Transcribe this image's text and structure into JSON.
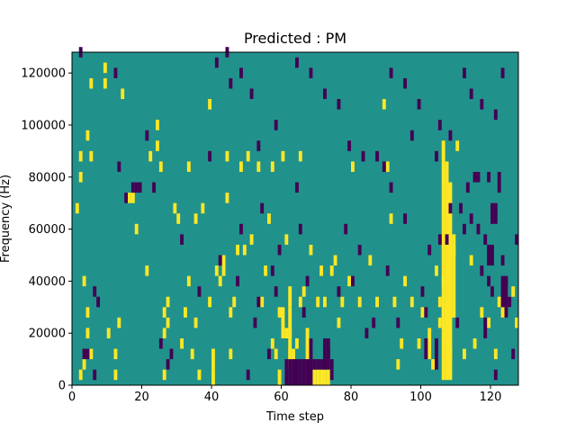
{
  "chart_data": {
    "type": "heatmap",
    "title": "Predicted : PM",
    "xlabel": "Time step",
    "ylabel": "Frequency (Hz)",
    "xlim": [
      0,
      128
    ],
    "ylim": [
      0,
      128000
    ],
    "x_ticks": [
      0,
      20,
      40,
      60,
      80,
      100,
      120
    ],
    "y_ticks": [
      0,
      20000,
      40000,
      60000,
      80000,
      100000,
      120000
    ],
    "x_tick_labels": [
      "0",
      "20",
      "40",
      "60",
      "80",
      "100",
      "120"
    ],
    "y_tick_labels": [
      "0",
      "20000",
      "40000",
      "60000",
      "80000",
      "100000",
      "120000"
    ],
    "grid": false,
    "colormap": "viridis",
    "background_value": 0,
    "colors": {
      "background": "#21918c",
      "high": "#fde725",
      "low": "#440154"
    },
    "cell_size": {
      "time_steps": 1,
      "frequency_hz": 4000
    },
    "high_cells": [
      [
        2,
        2000
      ],
      [
        3,
        6000
      ],
      [
        5,
        10000
      ],
      [
        4,
        18000
      ],
      [
        4,
        26000
      ],
      [
        3,
        38000
      ],
      [
        1,
        66000
      ],
      [
        2,
        78000
      ],
      [
        2,
        86000
      ],
      [
        5,
        86000
      ],
      [
        5,
        114000
      ],
      [
        4,
        94000
      ],
      [
        9,
        114000
      ],
      [
        9,
        120000
      ],
      [
        10,
        18000
      ],
      [
        12,
        2000
      ],
      [
        12,
        10000
      ],
      [
        13,
        22000
      ],
      [
        14,
        110000
      ],
      [
        16,
        70000
      ],
      [
        17,
        70000
      ],
      [
        18,
        58000
      ],
      [
        21,
        42000
      ],
      [
        22,
        86000
      ],
      [
        24,
        98000
      ],
      [
        26,
        2000
      ],
      [
        26,
        18000
      ],
      [
        26,
        26000
      ],
      [
        27,
        30000
      ],
      [
        27,
        22000
      ],
      [
        29,
        66000
      ],
      [
        30,
        62000
      ],
      [
        31,
        14000
      ],
      [
        32,
        26000
      ],
      [
        33,
        38000
      ],
      [
        33,
        82000
      ],
      [
        34,
        10000
      ],
      [
        35,
        62000
      ],
      [
        35,
        22000
      ],
      [
        36,
        2000
      ],
      [
        37,
        66000
      ],
      [
        39,
        30000
      ],
      [
        39,
        106000
      ],
      [
        40,
        6000
      ],
      [
        40,
        10000
      ],
      [
        41,
        42000
      ],
      [
        42,
        38000
      ],
      [
        43,
        42000
      ],
      [
        43,
        46000
      ],
      [
        44,
        70000
      ],
      [
        44,
        86000
      ],
      [
        45,
        26000
      ],
      [
        45,
        10000
      ],
      [
        46,
        30000
      ],
      [
        47,
        50000
      ],
      [
        48,
        82000
      ],
      [
        49,
        50000
      ],
      [
        50,
        86000
      ],
      [
        51,
        54000
      ],
      [
        53,
        82000
      ],
      [
        54,
        30000
      ],
      [
        55,
        42000
      ],
      [
        56,
        62000
      ],
      [
        57,
        14000
      ],
      [
        58,
        10000
      ],
      [
        59,
        26000
      ],
      [
        60,
        86000
      ],
      [
        61,
        54000
      ],
      [
        61,
        18000
      ],
      [
        62,
        18000
      ],
      [
        62,
        10000
      ],
      [
        62,
        6000
      ],
      [
        63,
        10000
      ],
      [
        64,
        14000
      ],
      [
        65,
        30000
      ],
      [
        65,
        86000
      ],
      [
        66,
        34000
      ],
      [
        68,
        50000
      ],
      [
        70,
        30000
      ],
      [
        71,
        42000
      ],
      [
        72,
        30000
      ],
      [
        74,
        42000
      ],
      [
        75,
        46000
      ],
      [
        76,
        22000
      ],
      [
        77,
        30000
      ],
      [
        79,
        38000
      ],
      [
        82,
        30000
      ],
      [
        85,
        46000
      ],
      [
        87,
        30000
      ],
      [
        89,
        106000
      ],
      [
        91,
        62000
      ],
      [
        92,
        30000
      ],
      [
        93,
        6000
      ],
      [
        94,
        14000
      ],
      [
        95,
        38000
      ],
      [
        97,
        30000
      ],
      [
        99,
        14000
      ],
      [
        100,
        26000
      ],
      [
        103,
        6000
      ],
      [
        104,
        42000
      ],
      [
        105,
        30000
      ],
      [
        105,
        22000
      ],
      [
        106,
        26000
      ],
      [
        106,
        38000
      ],
      [
        107,
        18000
      ],
      [
        108,
        10000
      ],
      [
        109,
        50000
      ],
      [
        110,
        90000
      ],
      [
        112,
        10000
      ],
      [
        114,
        46000
      ],
      [
        115,
        14000
      ],
      [
        117,
        26000
      ],
      [
        119,
        22000
      ],
      [
        121,
        10000
      ],
      [
        122,
        30000
      ],
      [
        123,
        26000
      ],
      [
        124,
        34000
      ],
      [
        125,
        30000
      ],
      [
        126,
        34000
      ],
      [
        127,
        22000
      ],
      [
        24,
        90000
      ],
      [
        25,
        82000
      ],
      [
        57,
        82000
      ],
      [
        80,
        82000
      ],
      [
        90,
        82000
      ]
    ],
    "high_runs": [
      {
        "x": 106,
        "y_from": 2000,
        "y_to": 90000
      },
      {
        "x": 107,
        "y_from": 2000,
        "y_to": 82000
      },
      {
        "x": 108,
        "y_from": 2000,
        "y_to": 74000
      },
      {
        "x": 109,
        "y_from": 26000,
        "y_to": 54000
      },
      {
        "x": 60,
        "y_from": 18000,
        "y_to": 26000
      },
      {
        "x": 62,
        "y_from": 6000,
        "y_to": 26000
      },
      {
        "x": 62,
        "y_from": 30000,
        "y_to": 34000
      },
      {
        "x": 69,
        "y_from": 0,
        "y_to": 2000
      },
      {
        "x": 70,
        "y_from": 0,
        "y_to": 2000
      },
      {
        "x": 71,
        "y_from": 0,
        "y_to": 2000
      },
      {
        "x": 72,
        "y_from": 0,
        "y_to": 2000
      },
      {
        "x": 73,
        "y_from": 0,
        "y_to": 2000
      },
      {
        "x": 59,
        "y_from": 0,
        "y_to": 2000
      },
      {
        "x": 40,
        "y_from": 0,
        "y_to": 2000
      },
      {
        "x": 102,
        "y_from": 10000,
        "y_to": 18000
      },
      {
        "x": 67,
        "y_from": 10000,
        "y_to": 18000
      }
    ],
    "low_cells": [
      [
        2,
        126000
      ],
      [
        3,
        10000
      ],
      [
        4,
        10000
      ],
      [
        6,
        2000
      ],
      [
        6,
        34000
      ],
      [
        7,
        30000
      ],
      [
        12,
        118000
      ],
      [
        13,
        82000
      ],
      [
        15,
        70000
      ],
      [
        17,
        74000
      ],
      [
        18,
        74000
      ],
      [
        19,
        74000
      ],
      [
        21,
        94000
      ],
      [
        23,
        74000
      ],
      [
        25,
        14000
      ],
      [
        27,
        6000
      ],
      [
        28,
        10000
      ],
      [
        31,
        54000
      ],
      [
        36,
        34000
      ],
      [
        39,
        86000
      ],
      [
        41,
        122000
      ],
      [
        42,
        46000
      ],
      [
        45,
        114000
      ],
      [
        47,
        38000
      ],
      [
        48,
        58000
      ],
      [
        50,
        2000
      ],
      [
        52,
        22000
      ],
      [
        53,
        30000
      ],
      [
        54,
        66000
      ],
      [
        56,
        10000
      ],
      [
        57,
        42000
      ],
      [
        58,
        34000
      ],
      [
        59,
        50000
      ],
      [
        64,
        74000
      ],
      [
        65,
        58000
      ],
      [
        66,
        26000
      ],
      [
        67,
        38000
      ],
      [
        68,
        14000
      ],
      [
        68,
        10000
      ],
      [
        69,
        6000
      ],
      [
        70,
        6000
      ],
      [
        71,
        6000
      ],
      [
        72,
        6000
      ],
      [
        73,
        10000
      ],
      [
        74,
        2000
      ],
      [
        74,
        6000
      ],
      [
        76,
        34000
      ],
      [
        78,
        58000
      ],
      [
        80,
        38000
      ],
      [
        82,
        50000
      ],
      [
        84,
        18000
      ],
      [
        86,
        22000
      ],
      [
        89,
        82000
      ],
      [
        90,
        42000
      ],
      [
        91,
        74000
      ],
      [
        93,
        22000
      ],
      [
        95,
        62000
      ],
      [
        97,
        94000
      ],
      [
        100,
        34000
      ],
      [
        101,
        26000
      ],
      [
        102,
        50000
      ],
      [
        104,
        86000
      ],
      [
        105,
        54000
      ],
      [
        107,
        54000
      ],
      [
        108,
        66000
      ],
      [
        110,
        22000
      ],
      [
        111,
        66000
      ],
      [
        112,
        58000
      ],
      [
        113,
        74000
      ],
      [
        114,
        62000
      ],
      [
        115,
        78000
      ],
      [
        116,
        58000
      ],
      [
        117,
        42000
      ],
      [
        118,
        54000
      ],
      [
        119,
        38000
      ],
      [
        120,
        34000
      ],
      [
        121,
        2000
      ],
      [
        122,
        74000
      ],
      [
        123,
        46000
      ],
      [
        124,
        26000
      ],
      [
        125,
        30000
      ],
      [
        126,
        10000
      ],
      [
        127,
        54000
      ],
      [
        116,
        78000
      ],
      [
        119,
        78000
      ],
      [
        122,
        78000
      ],
      [
        121,
        102000
      ],
      [
        123,
        118000
      ],
      [
        117,
        106000
      ],
      [
        114,
        110000
      ],
      [
        112,
        118000
      ],
      [
        108,
        94000
      ],
      [
        105,
        98000
      ],
      [
        99,
        106000
      ],
      [
        95,
        114000
      ],
      [
        91,
        118000
      ],
      [
        87,
        86000
      ],
      [
        83,
        86000
      ],
      [
        79,
        90000
      ],
      [
        76,
        106000
      ],
      [
        72,
        110000
      ],
      [
        68,
        118000
      ],
      [
        64,
        122000
      ],
      [
        58,
        98000
      ],
      [
        53,
        90000
      ],
      [
        51,
        110000
      ],
      [
        48,
        118000
      ],
      [
        44,
        126000
      ]
    ],
    "low_runs": [
      {
        "x": 63,
        "y_from": 0,
        "y_to": 6000
      },
      {
        "x": 64,
        "y_from": 0,
        "y_to": 6000
      },
      {
        "x": 65,
        "y_from": 0,
        "y_to": 6000
      },
      {
        "x": 66,
        "y_from": 0,
        "y_to": 6000
      },
      {
        "x": 67,
        "y_from": 0,
        "y_to": 6000
      },
      {
        "x": 68,
        "y_from": 0,
        "y_to": 6000
      },
      {
        "x": 73,
        "y_from": 6000,
        "y_to": 14000
      },
      {
        "x": 72,
        "y_from": 6000,
        "y_to": 14000
      },
      {
        "x": 104,
        "y_from": 6000,
        "y_to": 14000
      },
      {
        "x": 123,
        "y_from": 30000,
        "y_to": 38000
      },
      {
        "x": 124,
        "y_from": 30000,
        "y_to": 38000
      },
      {
        "x": 120,
        "y_from": 62000,
        "y_to": 66000
      },
      {
        "x": 121,
        "y_from": 62000,
        "y_to": 66000
      },
      {
        "x": 119,
        "y_from": 46000,
        "y_to": 50000
      },
      {
        "x": 120,
        "y_from": 46000,
        "y_to": 50000
      },
      {
        "x": 118,
        "y_from": 18000,
        "y_to": 22000
      },
      {
        "x": 101,
        "y_from": 10000,
        "y_to": 14000
      },
      {
        "x": 61,
        "y_from": 0,
        "y_to": 6000
      },
      {
        "x": 62,
        "y_from": 0,
        "y_to": 6000
      }
    ]
  }
}
